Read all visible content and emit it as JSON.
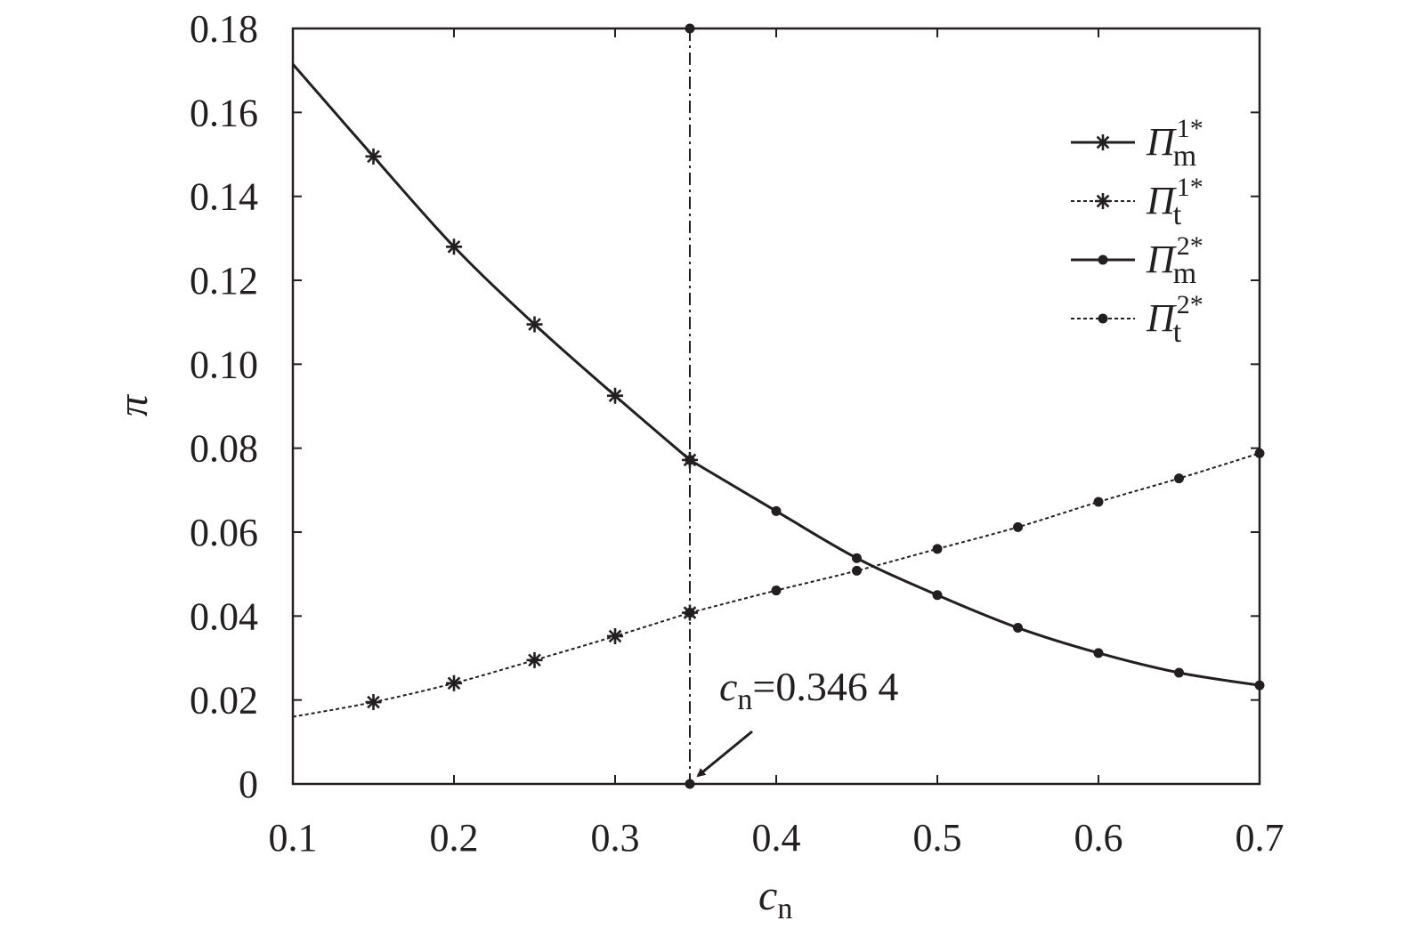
{
  "chart_data": {
    "type": "line",
    "xlabel": "c",
    "xlabel_sub": "n",
    "ylabel": "π",
    "xlim": [
      0.1,
      0.7
    ],
    "ylim": [
      0,
      0.18
    ],
    "x_ticks": [
      "0.1",
      "0.2",
      "0.3",
      "0.4",
      "0.5",
      "0.6",
      "0.7"
    ],
    "y_ticks": [
      "0",
      "0.02",
      "0.04",
      "0.06",
      "0.08",
      "0.10",
      "0.12",
      "0.14",
      "0.16",
      "0.18"
    ],
    "grid": false,
    "legend_placement": "top-right",
    "series": [
      {
        "name": "Π",
        "name_sub": "m",
        "name_sup": "1*",
        "line_style": "solid",
        "marker": "star",
        "x": [
          0.1,
          0.15,
          0.2,
          0.25,
          0.3,
          0.3464
        ],
        "y": [
          0.1715,
          0.1495,
          0.128,
          0.1095,
          0.0925,
          0.0772
        ]
      },
      {
        "name": "Π",
        "name_sub": "t",
        "name_sup": "1*",
        "line_style": "dotted",
        "marker": "star",
        "x": [
          0.1,
          0.15,
          0.2,
          0.25,
          0.3,
          0.3464
        ],
        "y": [
          0.016,
          0.0195,
          0.024,
          0.0295,
          0.0352,
          0.0408
        ]
      },
      {
        "name": "Π",
        "name_sub": "m",
        "name_sup": "2*",
        "line_style": "solid",
        "marker": "dot",
        "x": [
          0.3464,
          0.4,
          0.45,
          0.5,
          0.55,
          0.6,
          0.65,
          0.7
        ],
        "y": [
          0.0772,
          0.065,
          0.0538,
          0.045,
          0.0372,
          0.0312,
          0.0265,
          0.0235
        ]
      },
      {
        "name": "Π",
        "name_sub": "t",
        "name_sup": "2*",
        "line_style": "dotted",
        "marker": "dot",
        "x": [
          0.3464,
          0.4,
          0.45,
          0.5,
          0.55,
          0.6,
          0.65,
          0.7
        ],
        "y": [
          0.0408,
          0.0461,
          0.0508,
          0.056,
          0.0612,
          0.0672,
          0.0728,
          0.0788
        ]
      }
    ],
    "vline": {
      "x": 0.3464,
      "style": "dash-dot"
    },
    "annotation": {
      "var": "c",
      "sub": "n",
      "text": "=0.346 4",
      "arrow_to": [
        0.3464,
        0
      ]
    }
  }
}
